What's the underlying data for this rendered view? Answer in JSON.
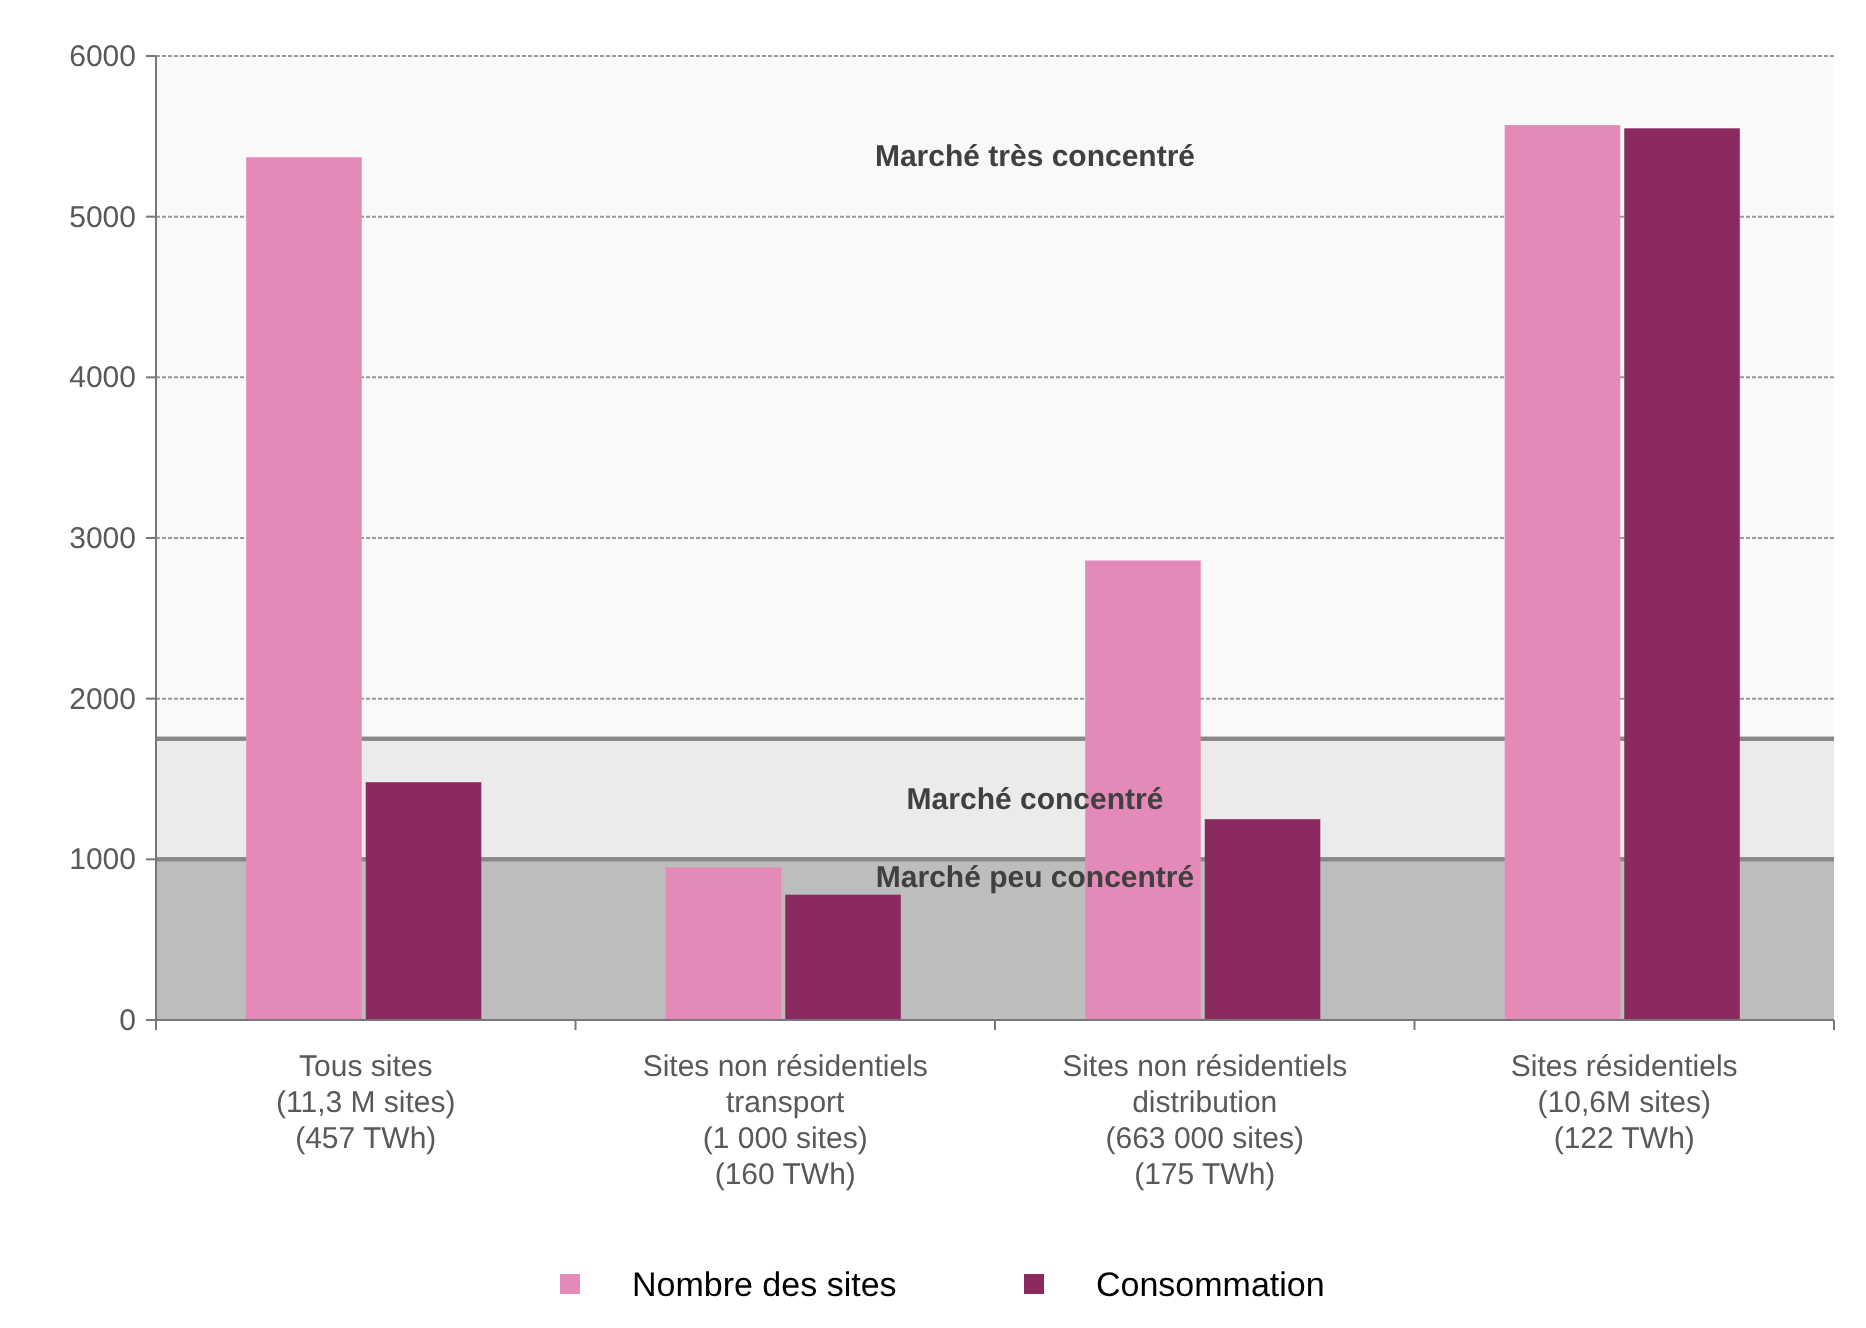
{
  "chart_data": {
    "type": "bar",
    "categories": [
      "Tous sites\n(11,3 M sites)\n(457 TWh)",
      "Sites non résidentiels\ntransport\n(1 000 sites)\n(160 TWh)",
      "Sites non résidentiels\ndistribution\n(663 000 sites)\n(175 TWh)",
      "Sites résidentiels\n(10,6M sites)\n(122 TWh)"
    ],
    "series": [
      {
        "name": "Nombre des sites",
        "color": "#e48ab8",
        "values": [
          5370,
          950,
          2860,
          5570
        ]
      },
      {
        "name": "Consommation",
        "color": "#8b2a5e",
        "values": [
          1480,
          780,
          1250,
          5550
        ]
      }
    ],
    "ylim": [
      0,
      6000
    ],
    "yticks": [
      0,
      1000,
      2000,
      3000,
      4000,
      5000,
      6000
    ],
    "grid": "y",
    "legend": "bottom",
    "bands": [
      {
        "axis": "y",
        "from": 0,
        "to": 1000,
        "label": "Marché peu concentré",
        "color": "#bdbdbd"
      },
      {
        "axis": "y",
        "from": 1000,
        "to": 1750,
        "label": "Marché concentré",
        "color": "#ebebeb"
      },
      {
        "axis": "y",
        "from": 1750,
        "to": 6000,
        "label": "Marché très concentré",
        "color": "#f9f9f9"
      }
    ]
  }
}
